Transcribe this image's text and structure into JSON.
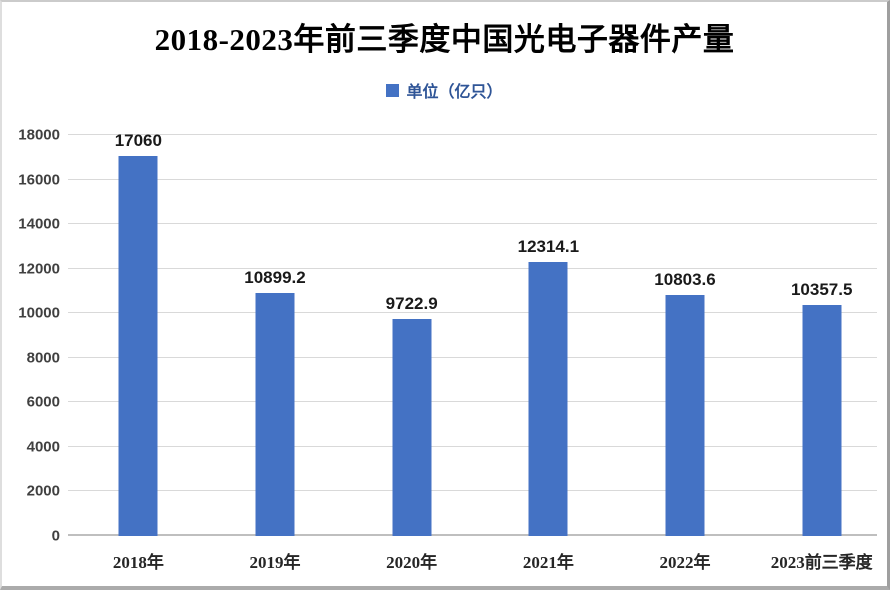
{
  "title": "2018-2023年前三季度中国光电子器件产量",
  "legend": {
    "label": "单位（亿只）",
    "marker_color": "#4472C4",
    "text_color": "#2F5597"
  },
  "chart_data": {
    "type": "bar",
    "title": "2018-2023年前三季度中国光电子器件产量",
    "legend_entries": [
      "单位（亿只）"
    ],
    "legend_position": "top",
    "categories": [
      "2018年",
      "2019年",
      "2020年",
      "2021年",
      "2022年",
      "2023前三季度"
    ],
    "values": [
      17060,
      10899.2,
      9722.9,
      12314.1,
      10803.6,
      10357.5
    ],
    "value_labels": [
      "17060",
      "10899.2",
      "9722.9",
      "12314.1",
      "10803.6",
      "10357.5"
    ],
    "xlabel": "",
    "ylabel": "",
    "ylim": [
      0,
      18000
    ],
    "ytick_step": 2000,
    "yticks": [
      0,
      2000,
      4000,
      6000,
      8000,
      10000,
      12000,
      14000,
      16000,
      18000
    ],
    "grid": "horizontal",
    "bar_color": "#4472C4",
    "gridline_color": "#D9D9D9",
    "axis_line_color": "#BFBFBF",
    "y_tick_label_color": "#404040",
    "x_tick_label_color": "#262626",
    "value_label_color": "#1A1A1A"
  }
}
